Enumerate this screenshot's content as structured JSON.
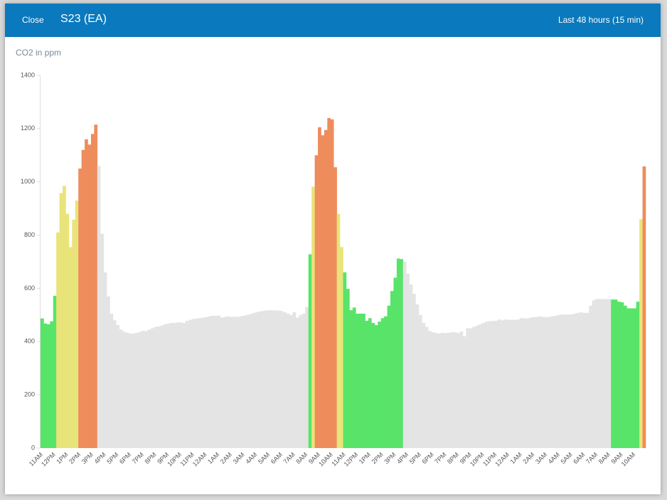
{
  "header": {
    "close": "Close",
    "title": "S23 (EA)",
    "range": "Last 48 hours (15 min)"
  },
  "chart_data": {
    "type": "bar",
    "y_label": "CO2 in ppm",
    "ylim": [
      0,
      1400
    ],
    "yticks": [
      0,
      200,
      400,
      600,
      800,
      1000,
      1200,
      1400
    ],
    "grid": false,
    "categories": [
      "11AM",
      null,
      null,
      null,
      "12PM",
      null,
      null,
      null,
      "1PM",
      null,
      null,
      null,
      "2PM",
      null,
      null,
      null,
      "3PM",
      null,
      null,
      null,
      "4PM",
      null,
      null,
      null,
      "5PM",
      null,
      null,
      null,
      "6PM",
      null,
      null,
      null,
      "7PM",
      null,
      null,
      null,
      "8PM",
      null,
      null,
      null,
      "9PM",
      null,
      null,
      null,
      "10PM",
      null,
      null,
      null,
      "11PM",
      null,
      null,
      null,
      "12AM",
      null,
      null,
      null,
      "1AM",
      null,
      null,
      null,
      "2AM",
      null,
      null,
      null,
      "3AM",
      null,
      null,
      null,
      "4AM",
      null,
      null,
      null,
      "5AM",
      null,
      null,
      null,
      "6AM",
      null,
      null,
      null,
      "7AM",
      null,
      null,
      null,
      "8AM",
      null,
      null,
      null,
      "9AM",
      null,
      null,
      null,
      "10AM",
      null,
      null,
      null,
      "11AM",
      null,
      null,
      null,
      "12PM",
      null,
      null,
      null,
      "1PM",
      null,
      null,
      null,
      "2PM",
      null,
      null,
      null,
      "3PM",
      null,
      null,
      null,
      "4PM",
      null,
      null,
      null,
      "5PM",
      null,
      null,
      null,
      "6PM",
      null,
      null,
      null,
      "7PM",
      null,
      null,
      null,
      "8PM",
      null,
      null,
      null,
      "9PM",
      null,
      null,
      null,
      "10PM",
      null,
      null,
      null,
      "11PM",
      null,
      null,
      null,
      "12AM",
      null,
      null,
      null,
      "1AM",
      null,
      null,
      null,
      "2AM",
      null,
      null,
      null,
      "3AM",
      null,
      null,
      null,
      "4AM",
      null,
      null,
      null,
      "5AM",
      null,
      null,
      null,
      "6AM",
      null,
      null,
      null,
      "7AM",
      null,
      null,
      null,
      "8AM",
      null,
      null,
      null,
      "9AM",
      null,
      null,
      null,
      "10AM",
      null,
      null,
      null
    ],
    "values": [
      487,
      468,
      465,
      476,
      572,
      810,
      958,
      985,
      880,
      755,
      858,
      930,
      1050,
      1120,
      1160,
      1140,
      1180,
      1215,
      1060,
      805,
      660,
      570,
      505,
      480,
      462,
      445,
      437,
      433,
      430,
      430,
      433,
      437,
      440,
      440,
      445,
      450,
      455,
      457,
      460,
      465,
      468,
      470,
      470,
      472,
      472,
      470,
      478,
      482,
      485,
      487,
      488,
      490,
      492,
      495,
      497,
      497,
      498,
      490,
      493,
      495,
      493,
      493,
      493,
      495,
      497,
      500,
      503,
      507,
      510,
      513,
      515,
      517,
      518,
      518,
      517,
      517,
      515,
      510,
      505,
      500,
      510,
      490,
      500,
      505,
      530,
      728,
      982,
      1100,
      1205,
      1175,
      1195,
      1240,
      1235,
      1055,
      880,
      755,
      660,
      598,
      518,
      528,
      505,
      505,
      505,
      478,
      488,
      470,
      462,
      475,
      488,
      495,
      535,
      590,
      640,
      712,
      710,
      700,
      655,
      615,
      580,
      540,
      500,
      470,
      455,
      440,
      435,
      432,
      430,
      433,
      432,
      433,
      435,
      435,
      432,
      438,
      420,
      450,
      450,
      455,
      460,
      465,
      470,
      475,
      477,
      477,
      478,
      483,
      480,
      483,
      482,
      482,
      482,
      483,
      488,
      488,
      487,
      490,
      492,
      493,
      495,
      493,
      492,
      493,
      495,
      497,
      500,
      502,
      502,
      502,
      502,
      505,
      508,
      510,
      508,
      508,
      535,
      555,
      560,
      560,
      560,
      560,
      560,
      558,
      558,
      550,
      548,
      535,
      525,
      525,
      525,
      550,
      860,
      1058
    ],
    "colors": [
      "#58e468",
      "#58e468",
      "#58e468",
      "#58e468",
      "#58e468",
      "#e9e47a",
      "#e9e47a",
      "#e9e47a",
      "#e9e47a",
      "#e9e47a",
      "#e9e47a",
      "#e9e47a",
      "#ee8c5c",
      "#ee8c5c",
      "#ee8c5c",
      "#ee8c5c",
      "#ee8c5c",
      "#ee8c5c",
      "#e4e4e4",
      "#e4e4e4",
      "#e4e4e4",
      "#e4e4e4",
      "#e4e4e4",
      "#e4e4e4",
      "#e4e4e4",
      "#e4e4e4",
      "#e4e4e4",
      "#e4e4e4",
      "#e4e4e4",
      "#e4e4e4",
      "#e4e4e4",
      "#e4e4e4",
      "#e4e4e4",
      "#e4e4e4",
      "#e4e4e4",
      "#e4e4e4",
      "#e4e4e4",
      "#e4e4e4",
      "#e4e4e4",
      "#e4e4e4",
      "#e4e4e4",
      "#e4e4e4",
      "#e4e4e4",
      "#e4e4e4",
      "#e4e4e4",
      "#e4e4e4",
      "#e4e4e4",
      "#e4e4e4",
      "#e4e4e4",
      "#e4e4e4",
      "#e4e4e4",
      "#e4e4e4",
      "#e4e4e4",
      "#e4e4e4",
      "#e4e4e4",
      "#e4e4e4",
      "#e4e4e4",
      "#e4e4e4",
      "#e4e4e4",
      "#e4e4e4",
      "#e4e4e4",
      "#e4e4e4",
      "#e4e4e4",
      "#e4e4e4",
      "#e4e4e4",
      "#e4e4e4",
      "#e4e4e4",
      "#e4e4e4",
      "#e4e4e4",
      "#e4e4e4",
      "#e4e4e4",
      "#e4e4e4",
      "#e4e4e4",
      "#e4e4e4",
      "#e4e4e4",
      "#e4e4e4",
      "#e4e4e4",
      "#e4e4e4",
      "#e4e4e4",
      "#e4e4e4",
      "#e4e4e4",
      "#e4e4e4",
      "#e4e4e4",
      "#e4e4e4",
      "#e4e4e4",
      "#58e468",
      "#e9e47a",
      "#ee8c5c",
      "#ee8c5c",
      "#ee8c5c",
      "#ee8c5c",
      "#ee8c5c",
      "#ee8c5c",
      "#ee8c5c",
      "#e9e47a",
      "#e9e47a",
      "#58e468",
      "#58e468",
      "#58e468",
      "#58e468",
      "#58e468",
      "#58e468",
      "#58e468",
      "#58e468",
      "#58e468",
      "#58e468",
      "#58e468",
      "#58e468",
      "#58e468",
      "#58e468",
      "#58e468",
      "#58e468",
      "#58e468",
      "#58e468",
      "#58e468",
      "#e4e4e4",
      "#e4e4e4",
      "#e4e4e4",
      "#e4e4e4",
      "#e4e4e4",
      "#e4e4e4",
      "#e4e4e4",
      "#e4e4e4",
      "#e4e4e4",
      "#e4e4e4",
      "#e4e4e4",
      "#e4e4e4",
      "#e4e4e4",
      "#e4e4e4",
      "#e4e4e4",
      "#e4e4e4",
      "#e4e4e4",
      "#e4e4e4",
      "#e4e4e4",
      "#e4e4e4",
      "#e4e4e4",
      "#e4e4e4",
      "#e4e4e4",
      "#e4e4e4",
      "#e4e4e4",
      "#e4e4e4",
      "#e4e4e4",
      "#e4e4e4",
      "#e4e4e4",
      "#e4e4e4",
      "#e4e4e4",
      "#e4e4e4",
      "#e4e4e4",
      "#e4e4e4",
      "#e4e4e4",
      "#e4e4e4",
      "#e4e4e4",
      "#e4e4e4",
      "#e4e4e4",
      "#e4e4e4",
      "#e4e4e4",
      "#e4e4e4",
      "#e4e4e4",
      "#e4e4e4",
      "#e4e4e4",
      "#e4e4e4",
      "#e4e4e4",
      "#e4e4e4",
      "#e4e4e4",
      "#e4e4e4",
      "#e4e4e4",
      "#e4e4e4",
      "#e4e4e4",
      "#e4e4e4",
      "#e4e4e4",
      "#e4e4e4",
      "#e4e4e4",
      "#e4e4e4",
      "#e4e4e4",
      "#e4e4e4",
      "#e4e4e4",
      "#e4e4e4",
      "#e4e4e4",
      "#e4e4e4",
      "#e4e4e4",
      "#e4e4e4",
      "#58e468",
      "#58e468",
      "#58e468",
      "#58e468",
      "#58e468",
      "#58e468",
      "#58e468",
      "#58e468",
      "#58e468",
      "#e9e47a",
      "#ee8c5c"
    ]
  }
}
